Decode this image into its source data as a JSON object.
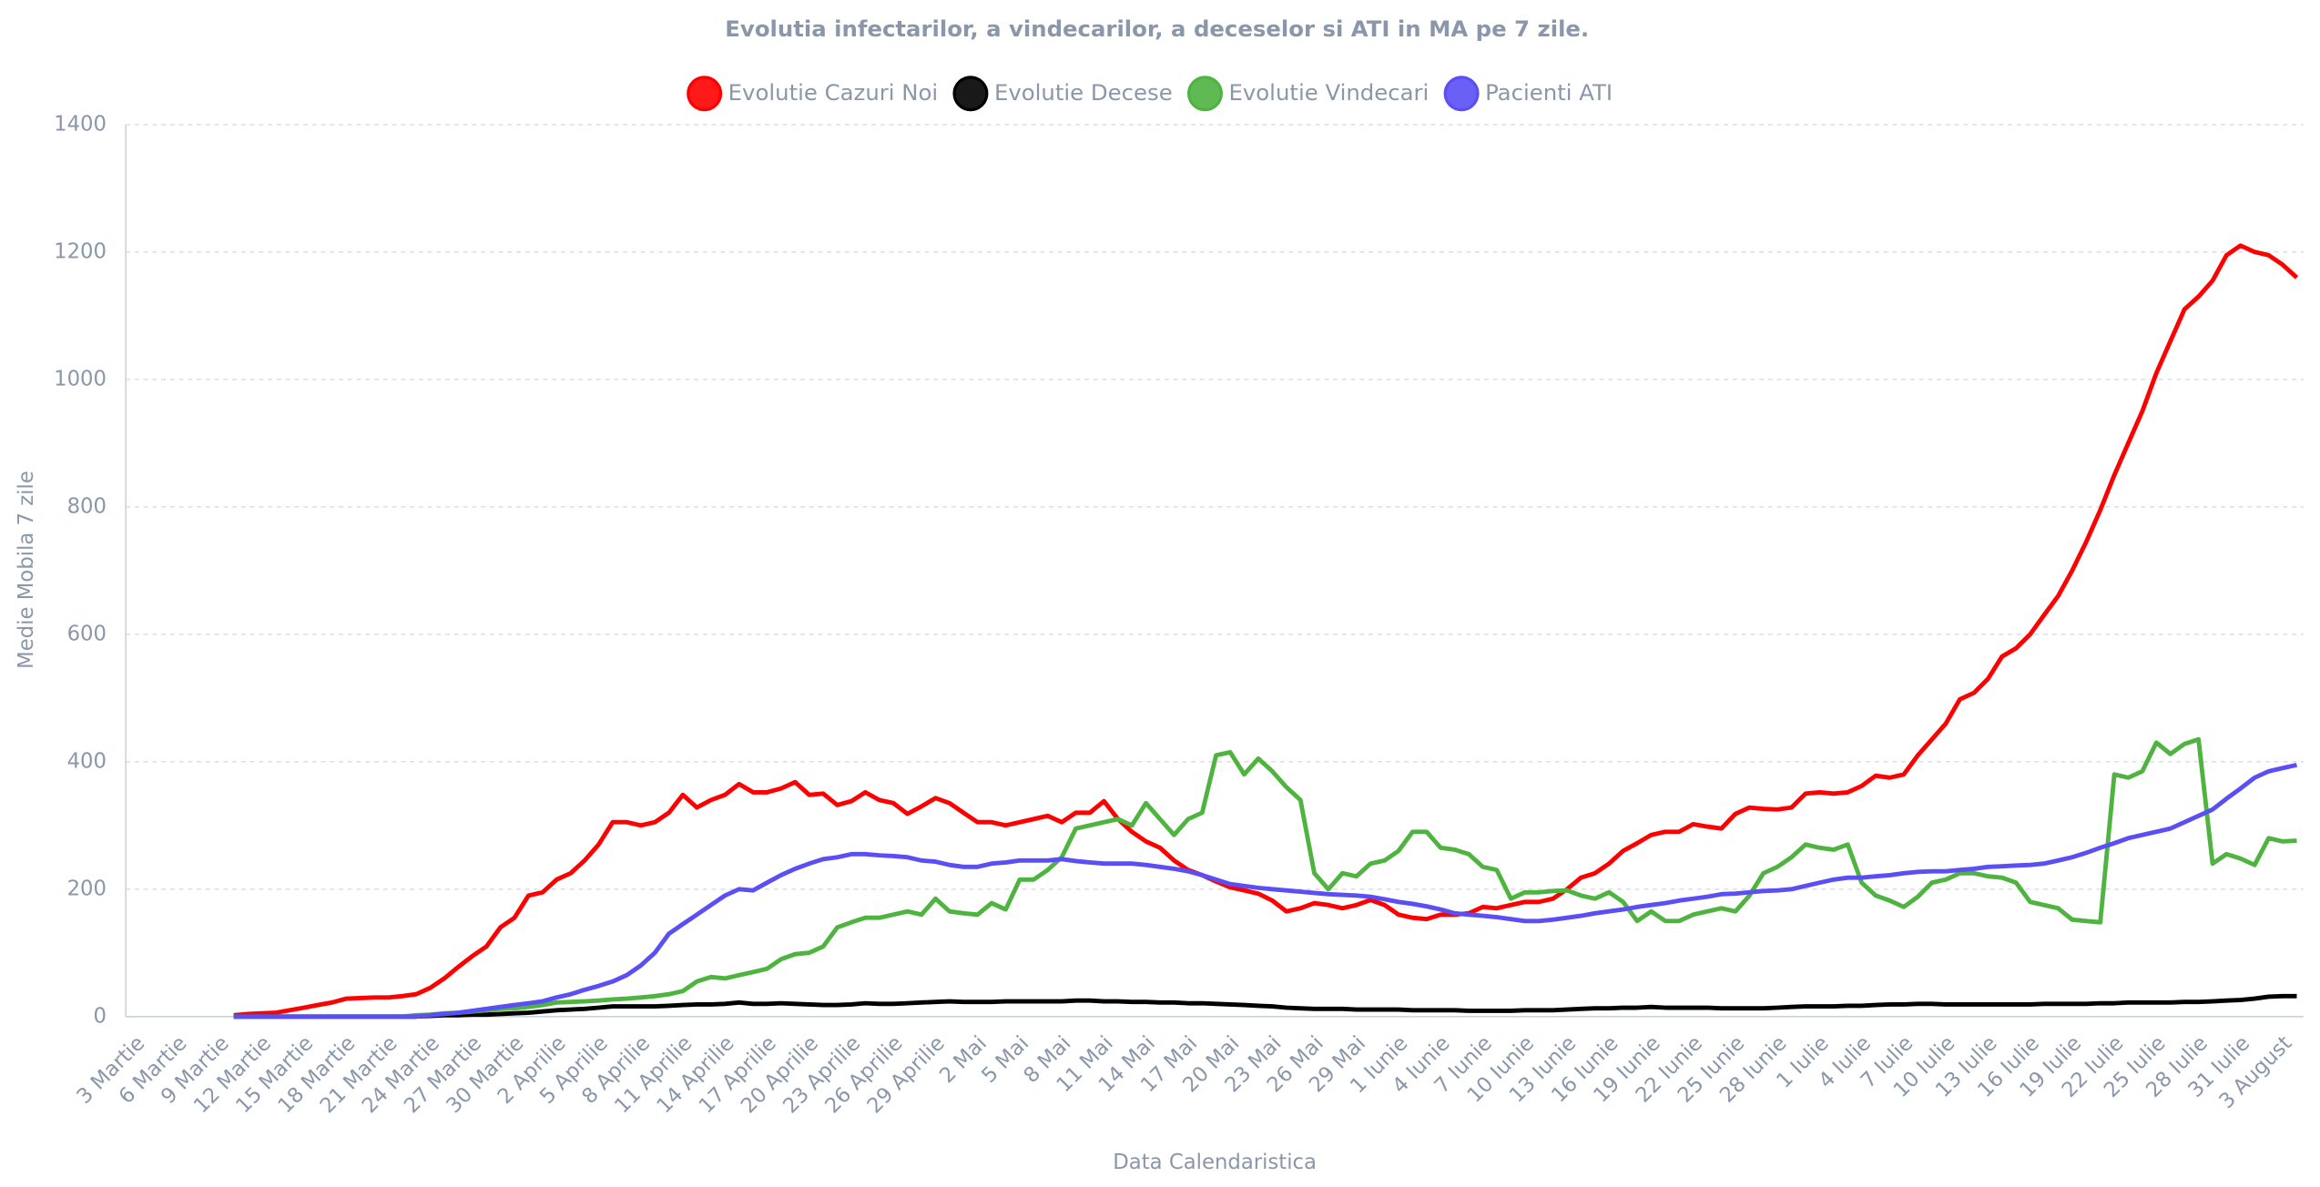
{
  "chart_data": {
    "type": "line",
    "title": "Evolutia infectarilor, a vindecarilor, a deceselor si ATI in MA pe 7 zile.",
    "x_label": "Data Calendaristica",
    "y_label": "Medie Mobila 7 zile",
    "ylim": [
      0,
      1400
    ],
    "yticks": [
      0,
      200,
      400,
      600,
      800,
      1000,
      1200,
      1400
    ],
    "grid": true,
    "legend": "top",
    "categories": [
      "3 Martie",
      null,
      null,
      "6 Martie",
      null,
      null,
      "9 Martie",
      null,
      null,
      "12 Martie",
      null,
      null,
      "15 Martie",
      null,
      null,
      "18 Martie",
      null,
      null,
      "21 Martie",
      null,
      null,
      "24 Martie",
      null,
      null,
      "27 Martie",
      null,
      null,
      "30 Martie",
      null,
      null,
      "2 Aprilie",
      null,
      null,
      "5 Aprilie",
      null,
      null,
      "8 Aprilie",
      null,
      null,
      "11 Aprilie",
      null,
      null,
      "14 Aprilie",
      null,
      null,
      "17 Aprilie",
      null,
      null,
      "20 Aprilie",
      null,
      null,
      "23 Aprilie",
      null,
      null,
      "26 Aprilie",
      null,
      null,
      "29 Aprilie",
      null,
      null,
      "2 Mai",
      null,
      null,
      "5 Mai",
      null,
      null,
      "8 Mai",
      null,
      null,
      "11 Mai",
      null,
      null,
      "14 Mai",
      null,
      null,
      "17 Mai",
      null,
      null,
      "20 Mai",
      null,
      null,
      "23 Mai",
      null,
      null,
      "26 Mai",
      null,
      null,
      "29 Mai",
      null,
      null,
      "1 Iunie",
      null,
      null,
      "4 Iunie",
      null,
      null,
      "7 Iunie",
      null,
      null,
      "10 Iunie",
      null,
      null,
      "13 Iunie",
      null,
      null,
      "16 Iunie",
      null,
      null,
      "19 Iunie",
      null,
      null,
      "22 Iunie",
      null,
      null,
      "25 Iunie",
      null,
      null,
      "28 Iunie",
      null,
      null,
      "1 Iulie",
      null,
      null,
      "4 Iulie",
      null,
      null,
      "7 Iulie",
      null,
      null,
      "10 Iulie",
      null,
      null,
      "13 Iulie",
      null,
      null,
      "16 Iulie",
      null,
      null,
      "19 Iulie",
      null,
      null,
      "22 Iulie",
      null,
      null,
      "25 Iulie",
      null,
      null,
      "28 Iulie",
      null,
      null,
      "31 Iulie",
      null,
      null,
      "3 August",
      null
    ],
    "series": [
      {
        "name": "Evolutie Cazuri Noi",
        "color": "#ff0000",
        "values": [
          null,
          null,
          null,
          null,
          null,
          null,
          null,
          2,
          4,
          5,
          6,
          10,
          14,
          18,
          22,
          28,
          29,
          30,
          30,
          32,
          35,
          45,
          60,
          78,
          95,
          110,
          140,
          155,
          190,
          195,
          215,
          225,
          245,
          270,
          305,
          305,
          300,
          305,
          320,
          348,
          328,
          340,
          348,
          365,
          352,
          352,
          358,
          368,
          348,
          350,
          332,
          338,
          352,
          340,
          335,
          318,
          330,
          343,
          335,
          320,
          305,
          305,
          300,
          305,
          310,
          315,
          305,
          320,
          320,
          338,
          310,
          290,
          275,
          265,
          245,
          230,
          222,
          212,
          203,
          198,
          193,
          182,
          165,
          170,
          178,
          175,
          170,
          175,
          183,
          175,
          160,
          155,
          153,
          160,
          160,
          162,
          172,
          170,
          175,
          180,
          180,
          185,
          200,
          218,
          225,
          240,
          260,
          272,
          285,
          290,
          290,
          302,
          298,
          295,
          318,
          328,
          326,
          325,
          328,
          350,
          352,
          350,
          352,
          362,
          378,
          375,
          380,
          410,
          435,
          460,
          498,
          508,
          530,
          565,
          578,
          600,
          630,
          660,
          700,
          745,
          795,
          850,
          900,
          950,
          1010,
          1060,
          1110,
          1130,
          1155,
          1195,
          1210,
          1200,
          1195,
          1180,
          1160
        ]
      },
      {
        "name": "Evolutie Decese",
        "color": "#000000",
        "values": [
          null,
          null,
          null,
          null,
          null,
          null,
          null,
          0,
          0,
          0,
          0,
          0,
          0,
          0,
          0,
          0,
          0,
          0,
          0,
          0,
          0,
          1,
          2,
          2,
          3,
          3,
          4,
          5,
          6,
          8,
          10,
          11,
          12,
          14,
          16,
          16,
          16,
          16,
          17,
          18,
          19,
          19,
          20,
          22,
          20,
          20,
          21,
          20,
          19,
          18,
          18,
          19,
          21,
          20,
          20,
          21,
          22,
          23,
          24,
          23,
          23,
          23,
          24,
          24,
          24,
          24,
          24,
          25,
          25,
          24,
          24,
          23,
          23,
          22,
          22,
          21,
          21,
          20,
          19,
          18,
          17,
          16,
          14,
          13,
          12,
          12,
          12,
          11,
          11,
          11,
          11,
          10,
          10,
          10,
          10,
          9,
          9,
          9,
          9,
          10,
          10,
          10,
          11,
          12,
          13,
          13,
          14,
          14,
          15,
          14,
          14,
          14,
          14,
          13,
          13,
          13,
          13,
          14,
          15,
          16,
          16,
          16,
          17,
          17,
          18,
          19,
          19,
          20,
          20,
          19,
          19,
          19,
          19,
          19,
          19,
          19,
          20,
          20,
          20,
          20,
          21,
          21,
          22,
          22,
          22,
          22,
          23,
          23,
          24,
          25,
          26,
          28,
          31,
          32,
          32
        ]
      },
      {
        "name": "Evolutie Vindecari",
        "color": "#4fb340",
        "values": [
          null,
          null,
          null,
          null,
          null,
          null,
          null,
          0,
          0,
          0,
          0,
          0,
          0,
          0,
          0,
          0,
          0,
          0,
          0,
          0,
          2,
          3,
          5,
          6,
          8,
          10,
          12,
          13,
          15,
          18,
          22,
          23,
          24,
          25,
          27,
          28,
          30,
          32,
          35,
          40,
          55,
          62,
          60,
          65,
          70,
          75,
          90,
          98,
          100,
          110,
          140,
          148,
          155,
          155,
          160,
          165,
          160,
          185,
          165,
          162,
          160,
          178,
          168,
          215,
          215,
          230,
          250,
          295,
          300,
          305,
          310,
          300,
          335,
          310,
          285,
          310,
          320,
          410,
          415,
          380,
          405,
          385,
          360,
          340,
          225,
          200,
          225,
          220,
          240,
          245,
          260,
          290,
          290,
          265,
          262,
          255,
          235,
          230,
          185,
          195,
          195,
          197,
          198,
          190,
          185,
          195,
          180,
          150,
          165,
          150,
          150,
          160,
          165,
          170,
          165,
          190,
          225,
          235,
          250,
          270,
          265,
          262,
          270,
          210,
          190,
          182,
          172,
          188,
          210,
          215,
          225,
          225,
          220,
          218,
          210,
          180,
          175,
          170,
          152,
          150,
          148,
          380,
          375,
          385,
          430,
          412,
          428,
          435,
          240,
          255,
          248,
          238,
          280,
          275,
          276
        ]
      },
      {
        "name": "Pacienti ATI",
        "color": "#5a4ff5",
        "values": [
          null,
          null,
          null,
          null,
          null,
          null,
          null,
          0,
          0,
          0,
          0,
          0,
          0,
          0,
          0,
          0,
          0,
          0,
          0,
          0,
          0,
          2,
          4,
          6,
          9,
          12,
          15,
          18,
          21,
          24,
          30,
          35,
          42,
          48,
          55,
          65,
          80,
          100,
          130,
          145,
          160,
          175,
          190,
          200,
          198,
          210,
          222,
          232,
          240,
          247,
          250,
          255,
          255,
          253,
          252,
          250,
          245,
          243,
          238,
          235,
          235,
          240,
          242,
          245,
          245,
          245,
          247,
          244,
          242,
          240,
          240,
          240,
          238,
          235,
          232,
          228,
          222,
          215,
          208,
          205,
          202,
          200,
          198,
          196,
          194,
          192,
          191,
          190,
          188,
          184,
          180,
          177,
          173,
          168,
          162,
          160,
          158,
          156,
          153,
          150,
          150,
          152,
          155,
          158,
          162,
          165,
          168,
          172,
          175,
          178,
          182,
          185,
          188,
          192,
          193,
          195,
          197,
          198,
          200,
          205,
          210,
          215,
          218,
          218,
          220,
          222,
          225,
          227,
          228,
          228,
          230,
          232,
          235,
          236,
          237,
          238,
          240,
          245,
          250,
          257,
          265,
          272,
          280,
          285,
          290,
          295,
          305,
          315,
          325,
          342,
          358,
          375,
          385,
          390,
          395
        ]
      }
    ]
  }
}
